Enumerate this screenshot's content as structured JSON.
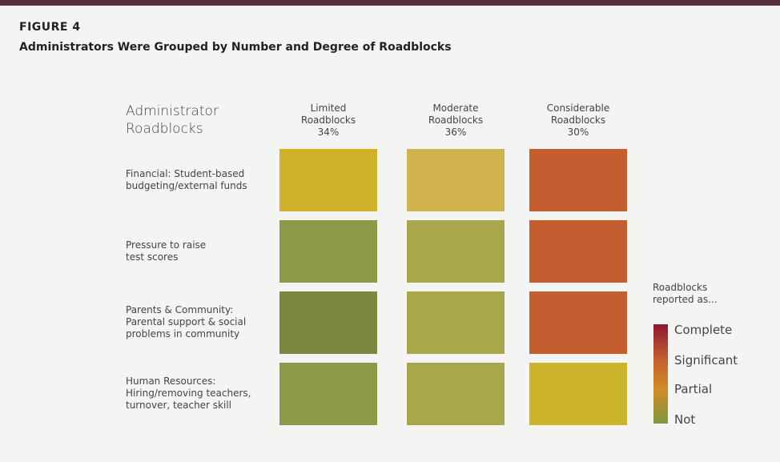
{
  "figure_label": "FIGURE 4",
  "title": "Administrators Were Grouped by Number and Degree of Roadblocks",
  "chart_data": {
    "type": "heatmap",
    "row_header": "Administrator Roadblocks",
    "columns": [
      {
        "label": "Limited Roadblocks",
        "share": "34%"
      },
      {
        "label": "Moderate Roadblocks",
        "share": "36%"
      },
      {
        "label": "Considerable Roadblocks",
        "share": "30%"
      }
    ],
    "rows": [
      {
        "label": "Financial: Student-based budgeting/external funds",
        "levels": [
          "Partial-",
          "Partial-",
          "Significant"
        ],
        "colors": [
          "#cdb22a",
          "#cfb34f",
          "#c45e2e"
        ]
      },
      {
        "label": "Pressure to raise test scores",
        "levels": [
          "Not",
          "Not+",
          "Significant"
        ],
        "colors": [
          "#8a9a46",
          "#aaa64b",
          "#c45e2e"
        ]
      },
      {
        "label": "Parents & Community: Parental support & social problems in community",
        "levels": [
          "Not",
          "Not+",
          "Significant"
        ],
        "colors": [
          "#7b883e",
          "#aaa64b",
          "#c45e2e"
        ]
      },
      {
        "label": "Human Resources: Hiring/removing teachers, turnover, teacher skill",
        "levels": [
          "Not",
          "Not+",
          "Partial-"
        ],
        "colors": [
          "#8a9a46",
          "#aaa64b",
          "#ccb42a"
        ]
      }
    ],
    "legend": {
      "title": "Roadblocks reported as...",
      "levels": [
        "Complete",
        "Significant",
        "Partial",
        "Not"
      ],
      "colors": [
        "#8f1533",
        "#c55e2f",
        "#d48a25",
        "#7d993f"
      ]
    }
  }
}
